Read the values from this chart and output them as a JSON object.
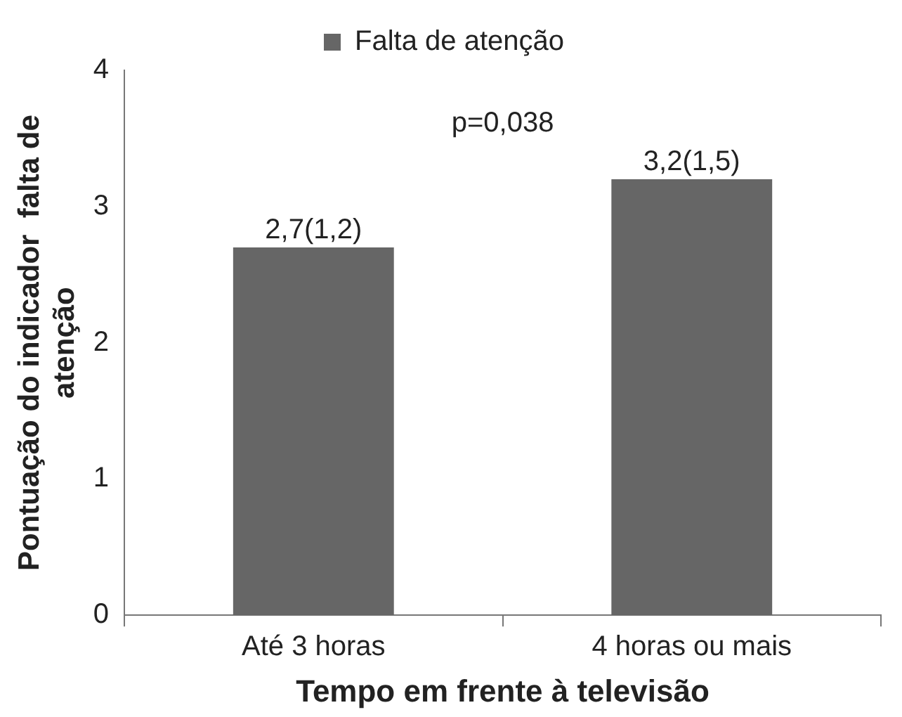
{
  "chart_data": {
    "type": "bar",
    "xlabel": "Tempo em frente à televisão",
    "ylabel": "Pontuação do indicador  falta de\natenção",
    "categories": [
      "Até 3 horas",
      "4 horas ou mais"
    ],
    "series": [
      {
        "name": "Falta de atenção",
        "color": "#666666",
        "values": [
          2.7,
          3.2
        ],
        "value_labels": [
          "2,7(1,2)",
          "3,2(1,5)"
        ]
      }
    ],
    "ylim": [
      0,
      4
    ],
    "yticks": [
      0,
      1,
      2,
      3,
      4
    ],
    "legend": "top",
    "annotations": [
      "p=0,038"
    ]
  }
}
